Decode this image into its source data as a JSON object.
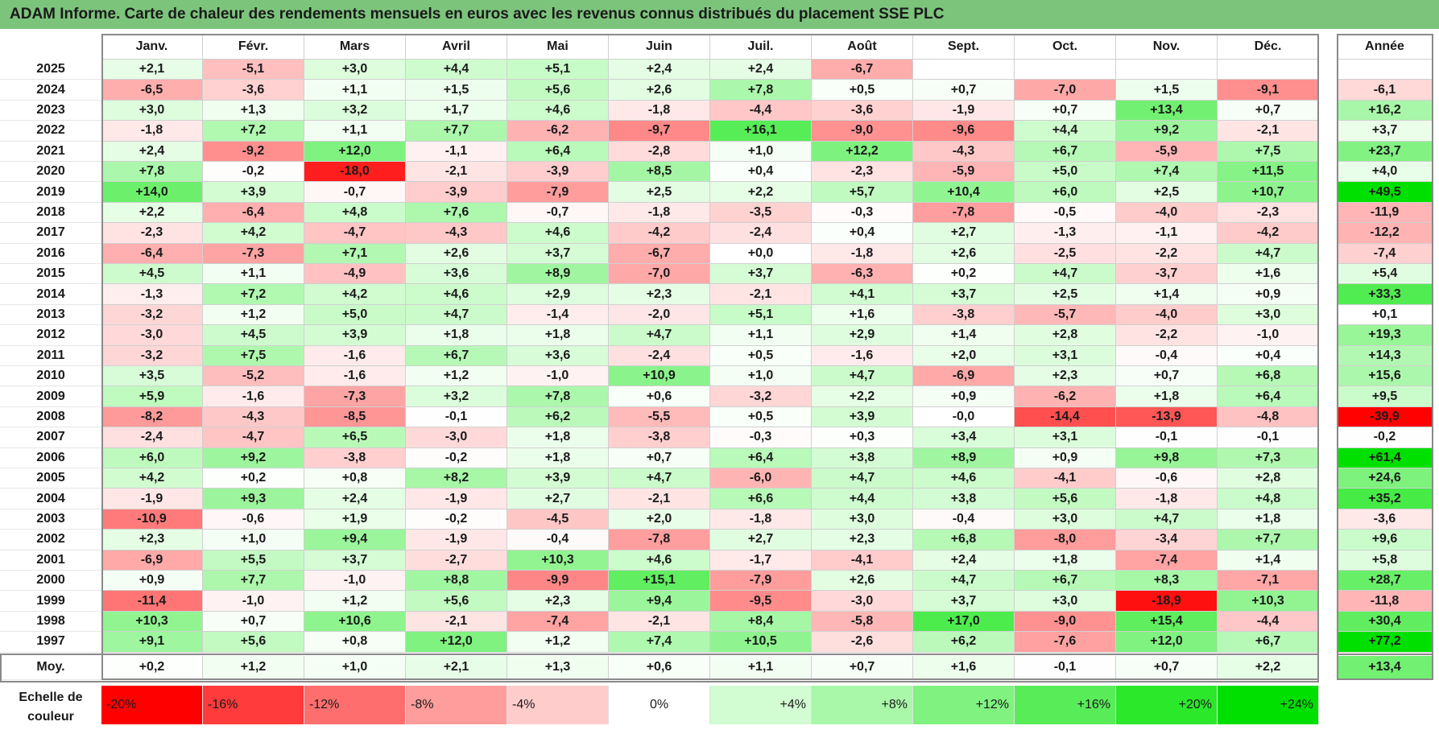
{
  "title": "ADAM Informe. Carte de chaleur des rendements mensuels en euros avec les revenus connus distribués du placement SSE PLC",
  "chart_data": {
    "type": "heatmap",
    "columns": [
      "Janv.",
      "Févr.",
      "Mars",
      "Avril",
      "Mai",
      "Juin",
      "Juil.",
      "Août",
      "Sept.",
      "Oct.",
      "Nov.",
      "Déc."
    ],
    "year_column": "Année",
    "rows": [
      {
        "year": "2025",
        "values": [
          "+2,1",
          "-5,1",
          "+3,0",
          "+4,4",
          "+5,1",
          "+2,4",
          "+2,4",
          "-6,7",
          "",
          "",
          "",
          ""
        ],
        "annual": ""
      },
      {
        "year": "2024",
        "values": [
          "-6,5",
          "-3,6",
          "+1,1",
          "+1,5",
          "+5,6",
          "+2,6",
          "+7,8",
          "+0,5",
          "+0,7",
          "-7,0",
          "+1,5",
          "-9,1"
        ],
        "annual": "-6,1"
      },
      {
        "year": "2023",
        "values": [
          "+3,0",
          "+1,3",
          "+3,2",
          "+1,7",
          "+4,6",
          "-1,8",
          "-4,4",
          "-3,6",
          "-1,9",
          "+0,7",
          "+13,4",
          "+0,7"
        ],
        "annual": "+16,2"
      },
      {
        "year": "2022",
        "values": [
          "-1,8",
          "+7,2",
          "+1,1",
          "+7,7",
          "-6,2",
          "-9,7",
          "+16,1",
          "-9,0",
          "-9,6",
          "+4,4",
          "+9,2",
          "-2,1"
        ],
        "annual": "+3,7"
      },
      {
        "year": "2021",
        "values": [
          "+2,4",
          "-9,2",
          "+12,0",
          "-1,1",
          "+6,4",
          "-2,8",
          "+1,0",
          "+12,2",
          "-4,3",
          "+6,7",
          "-5,9",
          "+7,5"
        ],
        "annual": "+23,7"
      },
      {
        "year": "2020",
        "values": [
          "+7,8",
          "-0,2",
          "-18,0",
          "-2,1",
          "-3,9",
          "+8,5",
          "+0,4",
          "-2,3",
          "-5,9",
          "+5,0",
          "+7,4",
          "+11,5"
        ],
        "annual": "+4,0"
      },
      {
        "year": "2019",
        "values": [
          "+14,0",
          "+3,9",
          "-0,7",
          "-3,9",
          "-7,9",
          "+2,5",
          "+2,2",
          "+5,7",
          "+10,4",
          "+6,0",
          "+2,5",
          "+10,7"
        ],
        "annual": "+49,5"
      },
      {
        "year": "2018",
        "values": [
          "+2,2",
          "-6,4",
          "+4,8",
          "+7,6",
          "-0,7",
          "-1,8",
          "-3,5",
          "-0,3",
          "-7,8",
          "-0,5",
          "-4,0",
          "-2,3"
        ],
        "annual": "-11,9"
      },
      {
        "year": "2017",
        "values": [
          "-2,3",
          "+4,2",
          "-4,7",
          "-4,3",
          "+4,6",
          "-4,2",
          "-2,4",
          "+0,4",
          "+2,7",
          "-1,3",
          "-1,1",
          "-4,2"
        ],
        "annual": "-12,2"
      },
      {
        "year": "2016",
        "values": [
          "-6,4",
          "-7,3",
          "+7,1",
          "+2,6",
          "+3,7",
          "-6,7",
          "+0,0",
          "-1,8",
          "+2,6",
          "-2,5",
          "-2,2",
          "+4,7"
        ],
        "annual": "-7,4"
      },
      {
        "year": "2015",
        "values": [
          "+4,5",
          "+1,1",
          "-4,9",
          "+3,6",
          "+8,9",
          "-7,0",
          "+3,7",
          "-6,3",
          "+0,2",
          "+4,7",
          "-3,7",
          "+1,6"
        ],
        "annual": "+5,4"
      },
      {
        "year": "2014",
        "values": [
          "-1,3",
          "+7,2",
          "+4,2",
          "+4,6",
          "+2,9",
          "+2,3",
          "-2,1",
          "+4,1",
          "+3,7",
          "+2,5",
          "+1,4",
          "+0,9"
        ],
        "annual": "+33,3"
      },
      {
        "year": "2013",
        "values": [
          "-3,2",
          "+1,2",
          "+5,0",
          "+4,7",
          "-1,4",
          "-2,0",
          "+5,1",
          "+1,6",
          "-3,8",
          "-5,7",
          "-4,0",
          "+3,0"
        ],
        "annual": "+0,1"
      },
      {
        "year": "2012",
        "values": [
          "-3,0",
          "+4,5",
          "+3,9",
          "+1,8",
          "+1,8",
          "+4,7",
          "+1,1",
          "+2,9",
          "+1,4",
          "+2,8",
          "-2,2",
          "-1,0"
        ],
        "annual": "+19,3"
      },
      {
        "year": "2011",
        "values": [
          "-3,2",
          "+7,5",
          "-1,6",
          "+6,7",
          "+3,6",
          "-2,4",
          "+0,5",
          "-1,6",
          "+2,0",
          "+3,1",
          "-0,4",
          "+0,4"
        ],
        "annual": "+14,3"
      },
      {
        "year": "2010",
        "values": [
          "+3,5",
          "-5,2",
          "-1,6",
          "+1,2",
          "-1,0",
          "+10,9",
          "+1,0",
          "+4,7",
          "-6,9",
          "+2,3",
          "+0,7",
          "+6,8"
        ],
        "annual": "+15,6"
      },
      {
        "year": "2009",
        "values": [
          "+5,9",
          "-1,6",
          "-7,3",
          "+3,2",
          "+7,8",
          "+0,6",
          "-3,2",
          "+2,2",
          "+0,9",
          "-6,2",
          "+1,8",
          "+6,4"
        ],
        "annual": "+9,5"
      },
      {
        "year": "2008",
        "values": [
          "-8,2",
          "-4,3",
          "-8,5",
          "-0,1",
          "+6,2",
          "-5,5",
          "+0,5",
          "+3,9",
          "-0,0",
          "-14,4",
          "-13,9",
          "-4,8"
        ],
        "annual": "-39,9"
      },
      {
        "year": "2007",
        "values": [
          "-2,4",
          "-4,7",
          "+6,5",
          "-3,0",
          "+1,8",
          "-3,8",
          "-0,3",
          "+0,3",
          "+3,4",
          "+3,1",
          "-0,1",
          "-0,1"
        ],
        "annual": "-0,2"
      },
      {
        "year": "2006",
        "values": [
          "+6,0",
          "+9,2",
          "-3,8",
          "-0,2",
          "+1,8",
          "+0,7",
          "+6,4",
          "+3,8",
          "+8,9",
          "+0,9",
          "+9,8",
          "+7,3"
        ],
        "annual": "+61,4"
      },
      {
        "year": "2005",
        "values": [
          "+4,2",
          "+0,2",
          "+0,8",
          "+8,2",
          "+3,9",
          "+4,7",
          "-6,0",
          "+4,7",
          "+4,6",
          "-4,1",
          "-0,6",
          "+2,8"
        ],
        "annual": "+24,6"
      },
      {
        "year": "2004",
        "values": [
          "-1,9",
          "+9,3",
          "+2,4",
          "-1,9",
          "+2,7",
          "-2,1",
          "+6,6",
          "+4,4",
          "+3,8",
          "+5,6",
          "-1,8",
          "+4,8"
        ],
        "annual": "+35,2"
      },
      {
        "year": "2003",
        "values": [
          "-10,9",
          "-0,6",
          "+1,9",
          "-0,2",
          "-4,5",
          "+2,0",
          "-1,8",
          "+3,0",
          "-0,4",
          "+3,0",
          "+4,7",
          "+1,8"
        ],
        "annual": "-3,6"
      },
      {
        "year": "2002",
        "values": [
          "+2,3",
          "+1,0",
          "+9,4",
          "-1,9",
          "-0,4",
          "-7,8",
          "+2,7",
          "+2,3",
          "+6,8",
          "-8,0",
          "-3,4",
          "+7,7"
        ],
        "annual": "+9,6"
      },
      {
        "year": "2001",
        "values": [
          "-6,9",
          "+5,5",
          "+3,7",
          "-2,7",
          "+10,3",
          "+4,6",
          "-1,7",
          "-4,1",
          "+2,4",
          "+1,8",
          "-7,4",
          "+1,4"
        ],
        "annual": "+5,8"
      },
      {
        "year": "2000",
        "values": [
          "+0,9",
          "+7,7",
          "-1,0",
          "+8,8",
          "-9,9",
          "+15,1",
          "-7,9",
          "+2,6",
          "+4,7",
          "+6,7",
          "+8,3",
          "-7,1"
        ],
        "annual": "+28,7"
      },
      {
        "year": "1999",
        "values": [
          "-11,4",
          "-1,0",
          "+1,2",
          "+5,6",
          "+2,3",
          "+9,4",
          "-9,5",
          "-3,0",
          "+3,7",
          "+3,0",
          "-18,9",
          "+10,3"
        ],
        "annual": "-11,8"
      },
      {
        "year": "1998",
        "values": [
          "+10,3",
          "+0,7",
          "+10,6",
          "-2,1",
          "-7,4",
          "-2,1",
          "+8,4",
          "-5,8",
          "+17,0",
          "-9,0",
          "+15,4",
          "-4,4"
        ],
        "annual": "+30,4"
      },
      {
        "year": "1997",
        "values": [
          "+9,1",
          "+5,6",
          "+0,8",
          "+12,0",
          "+1,2",
          "+7,4",
          "+10,5",
          "-2,6",
          "+6,2",
          "-7,6",
          "+12,0",
          "+6,7"
        ],
        "annual": "+77,2"
      }
    ],
    "average": {
      "label": "Moy.",
      "values": [
        "+0,2",
        "+1,2",
        "+1,0",
        "+2,1",
        "+1,3",
        "+0,6",
        "+1,1",
        "+0,7",
        "+1,6",
        "-0,1",
        "+0,7",
        "+2,2"
      ],
      "annual": "+13,4"
    },
    "legend": {
      "label_line1": "Echelle de",
      "label_line2": "couleur",
      "stops": [
        {
          "label": "-20%",
          "value": -20,
          "color": "#ff0000"
        },
        {
          "label": "-16%",
          "value": -16,
          "color": "#ff3b3b"
        },
        {
          "label": "-12%",
          "value": -12,
          "color": "#ff6e6e"
        },
        {
          "label": "-8%",
          "value": -8,
          "color": "#ff9c9c"
        },
        {
          "label": "-4%",
          "value": -4,
          "color": "#ffcccc"
        },
        {
          "label": "0%",
          "value": 0,
          "color": "#ffffff"
        },
        {
          "label": "+4%",
          "value": 4,
          "color": "#d2fcd2"
        },
        {
          "label": "+8%",
          "value": 8,
          "color": "#a9f7a9"
        },
        {
          "label": "+12%",
          "value": 12,
          "color": "#80f280"
        },
        {
          "label": "+16%",
          "value": 16,
          "color": "#58ed58"
        },
        {
          "label": "+20%",
          "value": 20,
          "color": "#2be82b"
        },
        {
          "label": "+24%",
          "value": 24,
          "color": "#00e000"
        }
      ]
    }
  }
}
